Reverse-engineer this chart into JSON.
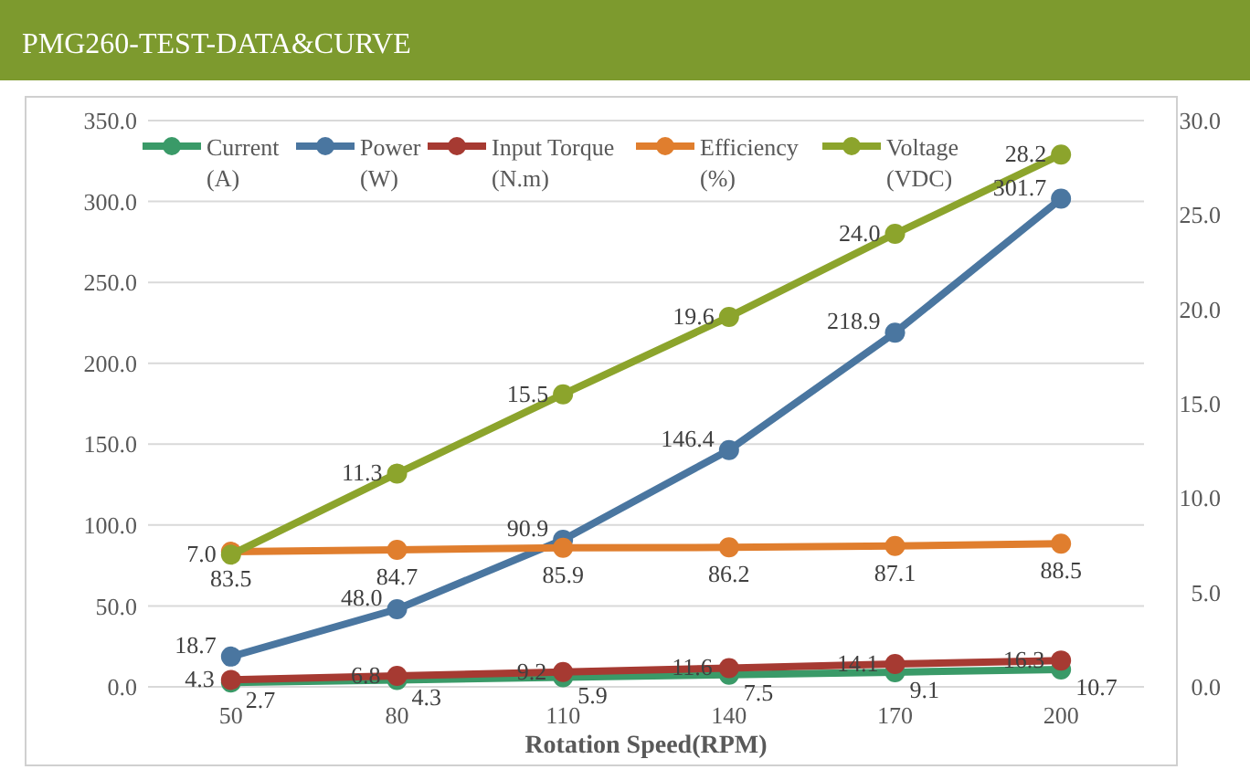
{
  "chart_data": {
    "type": "line",
    "title": "PMG260-TEST-DATA&CURVE",
    "xlabel": "Rotation Speed(RPM)",
    "categories": [
      "50",
      "80",
      "110",
      "140",
      "170",
      "200"
    ],
    "series": [
      {
        "name": "Current (A)",
        "color": "#3a9a68",
        "values": [
          2.7,
          4.3,
          5.9,
          7.5,
          9.1,
          10.7
        ],
        "value_labels": [
          "2.7",
          "4.3",
          "5.9",
          "7.5",
          "9.1",
          "10.7"
        ]
      },
      {
        "name": "Power (W)",
        "color": "#4a76a0",
        "values": [
          18.7,
          48.0,
          90.9,
          146.4,
          218.9,
          301.7
        ],
        "value_labels": [
          "18.7",
          "48.0",
          "90.9",
          "146.4",
          "218.9",
          "301.7"
        ]
      },
      {
        "name": "Input Torque (N.m)",
        "color": "#a63a32",
        "values": [
          4.3,
          6.8,
          9.2,
          11.6,
          14.1,
          16.3
        ],
        "value_labels": [
          "4.3",
          "6.8",
          "9.2",
          "11.6",
          "14.1",
          "16.3"
        ]
      },
      {
        "name": "Efficiency (%)",
        "color": "#e07e2e",
        "values": [
          83.5,
          84.7,
          85.9,
          86.2,
          87.1,
          88.5
        ],
        "value_labels": [
          "83.5",
          "84.7",
          "85.9",
          "86.2",
          "87.1",
          "88.5"
        ]
      },
      {
        "name": "Voltage (VDC)",
        "color": "#8ca42c",
        "axis": "y2",
        "values": [
          7.0,
          11.3,
          15.5,
          19.6,
          24.0,
          28.2
        ],
        "value_labels": [
          "7.0",
          "11.3",
          "15.5",
          "19.6",
          "24.0",
          "28.2"
        ]
      }
    ],
    "ylim": [
      0,
      350
    ],
    "yticks": [
      {
        "value": 0,
        "label": "0.0"
      },
      {
        "value": 50,
        "label": "50.0"
      },
      {
        "value": 100,
        "label": "100.0"
      },
      {
        "value": 150,
        "label": "150.0"
      },
      {
        "value": 200,
        "label": "200.0"
      },
      {
        "value": 250,
        "label": "250.0"
      },
      {
        "value": 300,
        "label": "300.0"
      },
      {
        "value": 350,
        "label": "350.0"
      }
    ],
    "y2lim": [
      0,
      30
    ],
    "y2ticks": [
      {
        "value": 0,
        "label": "0.0"
      },
      {
        "value": 5,
        "label": "5.0"
      },
      {
        "value": 10,
        "label": "10.0"
      },
      {
        "value": 15,
        "label": "15.0"
      },
      {
        "value": 20,
        "label": "20.0"
      },
      {
        "value": 25,
        "label": "25.0"
      },
      {
        "value": 30,
        "label": "30.0"
      }
    ],
    "grid": "y",
    "legend": "top",
    "marker": "circle",
    "line_style": "solid"
  }
}
